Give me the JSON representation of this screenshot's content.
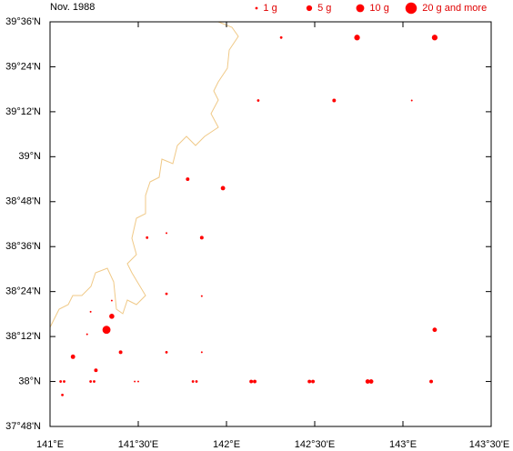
{
  "chart_data": {
    "type": "scatter",
    "title": "Nov. 1988",
    "color": "#ff0000",
    "coast_color": "#f0c987",
    "legend": [
      {
        "label": "1 g",
        "size": 1
      },
      {
        "label": "5 g",
        "size": 5
      },
      {
        "label": "10 g",
        "size": 10
      },
      {
        "label": "20 g and more",
        "size": 20
      }
    ],
    "xlim": [
      141,
      143.5
    ],
    "ylim": [
      37.8,
      39.6
    ],
    "xticks": [
      {
        "value": 141,
        "label": "141°E"
      },
      {
        "value": 141.5,
        "label": "141°30'E"
      },
      {
        "value": 142,
        "label": "142°E"
      },
      {
        "value": 142.5,
        "label": "142°30'E"
      },
      {
        "value": 143,
        "label": "143°E"
      },
      {
        "value": 143.5,
        "label": "143°30'E"
      }
    ],
    "yticks": [
      {
        "value": 37.8,
        "label": "37°48'N"
      },
      {
        "value": 38,
        "label": "38°N"
      },
      {
        "value": 38.2,
        "label": "38°12'N"
      },
      {
        "value": 38.4,
        "label": "38°24'N"
      },
      {
        "value": 38.6,
        "label": "38°36'N"
      },
      {
        "value": 38.8,
        "label": "38°48'N"
      },
      {
        "value": 39,
        "label": "39°N"
      },
      {
        "value": 39.2,
        "label": "39°12'N"
      },
      {
        "value": 39.4,
        "label": "39°24'N"
      },
      {
        "value": 39.6,
        "label": "39°36'N"
      }
    ],
    "x": [
      142.31,
      142.74,
      143.18,
      142.18,
      142.61,
      143.05,
      141.78,
      141.98,
      141.55,
      141.66,
      141.86,
      141.66,
      141.86,
      141.35,
      141.23,
      141.35,
      141.32,
      141.21,
      143.18,
      141.13,
      141.4,
      141.66,
      141.86,
      141.26,
      141.06,
      141.08,
      141.23,
      141.25,
      141.48,
      141.5,
      141.81,
      141.83,
      142.14,
      142.16,
      142.47,
      142.49,
      142.8,
      142.82,
      143.16,
      141.07
    ],
    "values": [
      39.53,
      39.53,
      39.53,
      39.25,
      39.25,
      39.25,
      38.9,
      38.86,
      38.64,
      38.66,
      38.64,
      38.39,
      38.38,
      38.36,
      38.31,
      38.29,
      38.23,
      38.21,
      38.23,
      38.11,
      38.13,
      38.13,
      38.13,
      38.05,
      38.0,
      38.0,
      38.0,
      38.0,
      38.0,
      38.0,
      38.0,
      38.0,
      38.0,
      38.0,
      38.0,
      38.0,
      38.0,
      38.0,
      38.0,
      37.94
    ],
    "sizes": [
      1,
      5,
      5,
      1,
      2,
      0.5,
      2,
      3,
      1,
      0.5,
      2,
      1,
      0.5,
      0.5,
      0.5,
      4,
      10,
      0.5,
      3,
      3,
      2,
      1,
      0.5,
      2,
      1,
      1,
      1,
      1,
      0.5,
      0.5,
      1,
      1,
      2,
      2,
      2,
      2,
      3,
      3,
      2,
      1
    ]
  }
}
